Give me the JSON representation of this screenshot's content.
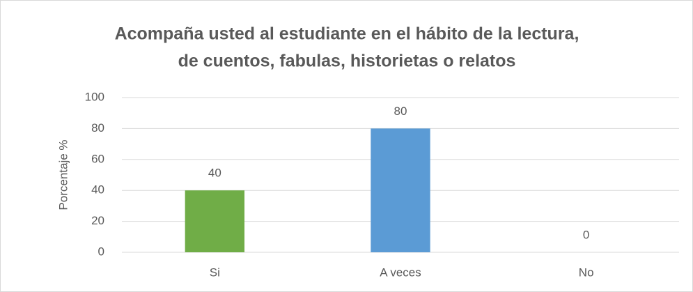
{
  "chart_data": {
    "type": "bar",
    "title": [
      "Acompaña usted al estudiante en el hábito de la lectura,",
      "de cuentos, fabulas, historietas o relatos"
    ],
    "ylabel": "Porcentaje %",
    "categories": [
      "Si",
      "A veces",
      "No"
    ],
    "values": [
      40,
      80,
      0
    ],
    "colors": [
      "#70ad47",
      "#5b9bd5",
      "#ed7d31"
    ],
    "ylim": [
      0,
      100
    ],
    "yticks": [
      0,
      20,
      40,
      60,
      80,
      100
    ],
    "grid": true
  }
}
